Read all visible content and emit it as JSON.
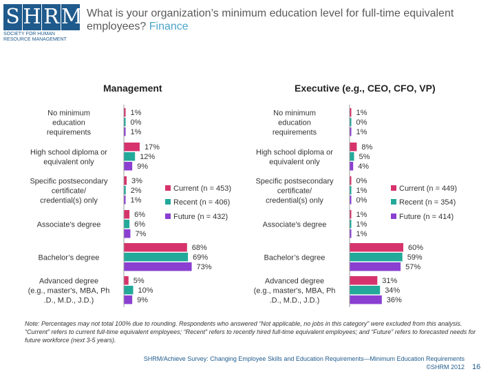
{
  "logo": {
    "text": "SHRM",
    "subtitle_lines": [
      "SOCIETY FOR HUMAN",
      "RESOURCE MANAGEMENT"
    ]
  },
  "title": {
    "main": "What is your organization’s minimum education level for full-time equivalent employees?",
    "accent": "Finance"
  },
  "colors": {
    "current": "#d6336c",
    "recent": "#22a99a",
    "future": "#8a3fd1"
  },
  "chart_data": [
    {
      "type": "bar",
      "orientation": "horizontal",
      "title": "Management",
      "categories": [
        [
          "No minimum",
          "education",
          "requirements"
        ],
        [
          "High school diploma or",
          "equivalent only"
        ],
        [
          "Specific postsecondary",
          "certificate/",
          "credential(s) only"
        ],
        [
          "Associate’s degree"
        ],
        [
          "Bachelor’s degree"
        ],
        [
          "Advanced degree",
          "(e.g., master's, MBA, Ph",
          ".D., M.D., J.D.)"
        ]
      ],
      "series": [
        {
          "name": "Current (n = 453)",
          "values": [
            1,
            17,
            3,
            6,
            68,
            5
          ]
        },
        {
          "name": "Recent (n = 406)",
          "values": [
            0,
            12,
            2,
            6,
            69,
            10
          ]
        },
        {
          "name": "Future (n = 432)",
          "values": [
            1,
            9,
            1,
            7,
            73,
            9
          ]
        }
      ],
      "value_suffix": "%",
      "legend": "middle-right"
    },
    {
      "type": "bar",
      "orientation": "horizontal",
      "title": "Executive (e.g., CEO, CFO, VP)",
      "categories": [
        [
          "No minimum",
          "education",
          "requirements"
        ],
        [
          "High school diploma or",
          "equivalent only"
        ],
        [
          "Specific postsecondary",
          "certificate/",
          "credential(s) only"
        ],
        [
          "Associate’s degree"
        ],
        [
          "Bachelor’s degree"
        ],
        [
          "Advanced degree",
          "(e.g., master's, MBA, Ph",
          ".D., M.D., J.D.)"
        ]
      ],
      "series": [
        {
          "name": "Current (n = 449)",
          "values": [
            1,
            8,
            0,
            1,
            60,
            31
          ]
        },
        {
          "name": "Recent (n = 354)",
          "values": [
            0,
            5,
            1,
            1,
            59,
            34
          ]
        },
        {
          "name": "Future (n = 414)",
          "values": [
            1,
            4,
            0,
            1,
            57,
            36
          ]
        }
      ],
      "value_suffix": "%",
      "legend": "middle-right"
    }
  ],
  "note": "Note: Percentages may not total 100% due to rounding. Respondents who answered “Not applicable, no jobs in this category” were excluded from this analysis. “Current” refers to current full-time equivalent employees; “Recent” refers to recently hired full-time equivalent employees; and “Future” refers to forecasted needs for future workforce (next 3-5 years).",
  "footer": {
    "line1": "SHRM/Achieve Survey: Changing Employee Skills and Education Requirements—Minimum Education Requirements",
    "line2": "©SHRM 2012",
    "page": "16"
  }
}
